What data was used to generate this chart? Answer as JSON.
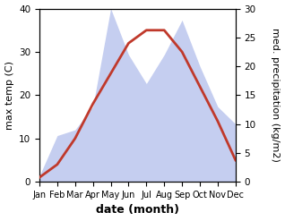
{
  "months": [
    "Jan",
    "Feb",
    "Mar",
    "Apr",
    "May",
    "Jun",
    "Jul",
    "Aug",
    "Sep",
    "Oct",
    "Nov",
    "Dec"
  ],
  "max_temp": [
    1,
    4,
    10,
    18,
    25,
    32,
    35,
    35,
    30,
    22,
    14,
    5
  ],
  "precipitation": [
    1,
    8,
    9,
    13,
    30,
    22,
    17,
    22,
    28,
    20,
    13,
    10
  ],
  "temp_color": "#c0392b",
  "precip_fill_color": "#c5cef0",
  "temp_ylim": [
    0,
    40
  ],
  "precip_ylim": [
    0,
    30
  ],
  "xlabel": "date (month)",
  "ylabel_left": "max temp (C)",
  "ylabel_right": "med. precipitation (kg/m2)",
  "background_color": "#ffffff",
  "temp_linewidth": 2.0,
  "xlabel_fontsize": 9,
  "ylabel_fontsize": 8
}
